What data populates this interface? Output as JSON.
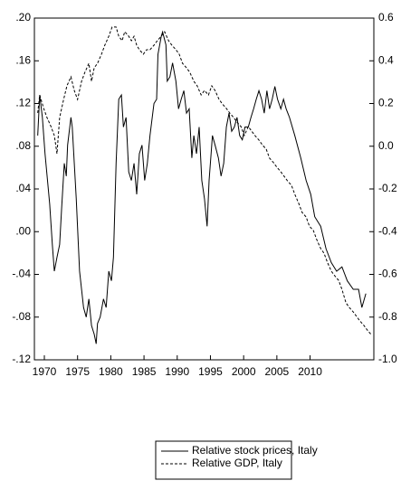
{
  "chart_data": {
    "type": "line",
    "xlim": [
      1968.5,
      2019.6
    ],
    "xticks": [
      1970,
      1975,
      1980,
      1985,
      1990,
      1995,
      2000,
      2005,
      2010
    ],
    "ylim": [
      -0.12,
      0.2
    ],
    "yticks": [
      {
        "value": 0.2,
        "label": ".20"
      },
      {
        "value": 0.16,
        "label": ".16"
      },
      {
        "value": 0.12,
        "label": ".12"
      },
      {
        "value": 0.08,
        "label": ".08"
      },
      {
        "value": 0.04,
        "label": ".04"
      },
      {
        "value": 0,
        "label": ".00"
      },
      {
        "value": -0.04,
        "label": "-.04"
      },
      {
        "value": -0.08,
        "label": "-.08"
      },
      {
        "value": -0.12,
        "label": "-.12"
      }
    ],
    "y2lim": [
      -1.0,
      0.6
    ],
    "y2ticks": [
      0.6,
      0.4,
      0.2,
      {
        "value": 0,
        "label": "0.0"
      },
      -0.2,
      -0.4,
      -0.6,
      -0.8,
      {
        "value": -1.0,
        "label": "-1.0"
      }
    ],
    "legend": "bottom",
    "series": [
      {
        "name": "Relative stock prices, Italy",
        "color": "#000000",
        "line_style": "solid",
        "axis": "y",
        "x": [
          1969.0,
          1969.3,
          1969.7,
          1970.1,
          1970.8,
          1971.2,
          1971.5,
          1971.9,
          1972.3,
          1972.6,
          1973.0,
          1973.3,
          1973.5,
          1974.0,
          1974.2,
          1974.8,
          1975.3,
          1975.9,
          1976.3,
          1976.7,
          1977.1,
          1977.5,
          1977.8,
          1978.0,
          1978.4,
          1978.9,
          1979.3,
          1979.7,
          1980.1,
          1980.4,
          1980.8,
          1981.2,
          1981.6,
          1981.9,
          1982.3,
          1982.7,
          1983.1,
          1983.5,
          1983.9,
          1984.3,
          1984.7,
          1985.1,
          1985.5,
          1985.9,
          1986.5,
          1986.9,
          1987.1,
          1987.6,
          1987.8,
          1988.3,
          1988.5,
          1988.9,
          1989.3,
          1989.8,
          1990.2,
          1990.6,
          1991.0,
          1991.4,
          1991.8,
          1992.2,
          1992.5,
          1992.9,
          1993.3,
          1993.7,
          1994.1,
          1994.5,
          1994.8,
          1995.1,
          1995.3,
          1995.7,
          1996.2,
          1996.6,
          1997.0,
          1997.4,
          1997.8,
          1998.2,
          1998.6,
          1999.0,
          1999.4,
          1999.8,
          2000.2,
          2000.7,
          2001.1,
          2001.5,
          2001.9,
          2002.3,
          2002.7,
          2003.1,
          2003.5,
          2003.9,
          2004.3,
          2004.7,
          2005.1,
          2005.6,
          2006.0,
          2006.4,
          2006.9,
          2007.7,
          2008.6,
          2009.4,
          2010.1,
          2010.7,
          2011.6,
          2012.4,
          2013.2,
          2014.0,
          2014.8,
          2015.6,
          2016.5,
          2017.3,
          2017.8,
          2018.4
        ],
        "values": [
          0.09,
          0.128,
          0.107,
          0.073,
          0.026,
          -0.012,
          -0.037,
          -0.024,
          -0.012,
          0.022,
          0.064,
          0.052,
          0.081,
          0.107,
          0.098,
          0.031,
          -0.037,
          -0.071,
          -0.08,
          -0.063,
          -0.088,
          -0.096,
          -0.105,
          -0.086,
          -0.08,
          -0.063,
          -0.071,
          -0.037,
          -0.046,
          -0.024,
          0.064,
          0.124,
          0.128,
          0.098,
          0.107,
          0.056,
          0.048,
          0.064,
          0.035,
          0.073,
          0.081,
          0.048,
          0.064,
          0.09,
          0.12,
          0.124,
          0.166,
          0.183,
          0.187,
          0.175,
          0.141,
          0.145,
          0.158,
          0.141,
          0.115,
          0.124,
          0.132,
          0.111,
          0.115,
          0.069,
          0.09,
          0.073,
          0.098,
          0.048,
          0.031,
          0.005,
          0.048,
          0.073,
          0.09,
          0.081,
          0.069,
          0.052,
          0.064,
          0.098,
          0.111,
          0.094,
          0.098,
          0.107,
          0.09,
          0.086,
          0.098,
          0.098,
          0.107,
          0.115,
          0.124,
          0.132,
          0.124,
          0.111,
          0.132,
          0.115,
          0.124,
          0.136,
          0.124,
          0.115,
          0.124,
          0.115,
          0.107,
          0.09,
          0.069,
          0.048,
          0.035,
          0.014,
          0.005,
          -0.016,
          -0.029,
          -0.037,
          -0.033,
          -0.046,
          -0.054,
          -0.054,
          -0.071,
          -0.058
        ]
      },
      {
        "name": "Relative GDP, Italy",
        "color": "#000000",
        "line_style": "dashed",
        "axis": "y2",
        "x": [
          1969.0,
          1969.3,
          1969.9,
          1970.4,
          1971.0,
          1971.5,
          1971.9,
          1972.3,
          1972.9,
          1973.4,
          1974.0,
          1974.5,
          1975.0,
          1975.6,
          1976.1,
          1976.7,
          1977.1,
          1977.5,
          1978.0,
          1978.6,
          1979.1,
          1979.7,
          1980.2,
          1980.8,
          1981.2,
          1981.7,
          1982.1,
          1982.7,
          1983.1,
          1983.5,
          1983.9,
          1984.3,
          1984.9,
          1985.4,
          1985.9,
          1986.5,
          1987.0,
          1987.6,
          1988.1,
          1988.7,
          1989.2,
          1989.8,
          1990.3,
          1990.8,
          1991.4,
          1991.9,
          1992.5,
          1993.0,
          1993.6,
          1994.1,
          1994.7,
          1995.2,
          1995.7,
          1996.3,
          1996.8,
          1997.4,
          1997.9,
          1998.5,
          1999.0,
          1999.6,
          2000.1,
          2000.7,
          2001.2,
          2001.7,
          2002.3,
          2002.8,
          2003.4,
          2003.9,
          2004.5,
          2005.0,
          2005.6,
          2006.1,
          2006.6,
          2007.2,
          2007.7,
          2008.3,
          2008.8,
          2009.4,
          2009.9,
          2010.5,
          2011.0,
          2011.6,
          2012.1,
          2012.6,
          2013.2,
          2013.7,
          2014.3,
          2014.8,
          2015.4,
          2015.9,
          2016.5,
          2017.0,
          2017.5,
          2018.1,
          2018.6,
          2019.2
        ],
        "values": [
          0.156,
          0.24,
          0.177,
          0.134,
          0.092,
          0.05,
          -0.035,
          0.134,
          0.219,
          0.283,
          0.325,
          0.261,
          0.219,
          0.304,
          0.346,
          0.388,
          0.304,
          0.367,
          0.388,
          0.431,
          0.473,
          0.515,
          0.558,
          0.558,
          0.515,
          0.494,
          0.536,
          0.515,
          0.494,
          0.515,
          0.473,
          0.452,
          0.431,
          0.452,
          0.452,
          0.473,
          0.494,
          0.515,
          0.536,
          0.494,
          0.473,
          0.452,
          0.431,
          0.388,
          0.367,
          0.346,
          0.304,
          0.283,
          0.24,
          0.261,
          0.24,
          0.283,
          0.261,
          0.219,
          0.198,
          0.177,
          0.156,
          0.134,
          0.113,
          0.092,
          0.05,
          0.092,
          0.071,
          0.05,
          0.029,
          0.007,
          -0.014,
          -0.056,
          -0.077,
          -0.098,
          -0.12,
          -0.141,
          -0.162,
          -0.183,
          -0.225,
          -0.268,
          -0.31,
          -0.331,
          -0.374,
          -0.395,
          -0.437,
          -0.479,
          -0.501,
          -0.543,
          -0.585,
          -0.606,
          -0.628,
          -0.67,
          -0.733,
          -0.755,
          -0.776,
          -0.797,
          -0.818,
          -0.839,
          -0.86,
          -0.882
        ]
      }
    ]
  }
}
